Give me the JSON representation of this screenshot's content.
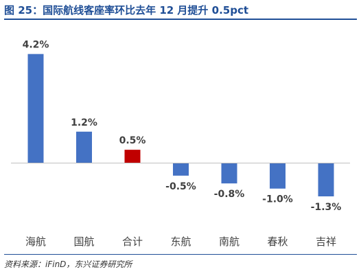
{
  "header": {
    "title": "图 25：国际航线客座率环比去年 12 月提升 0.5pct"
  },
  "footer": {
    "source": "资料来源：iFinD，东兴证券研究所"
  },
  "colors": {
    "title": "#1f4e96",
    "bar_default": "#4472c4",
    "bar_highlight": "#c00000",
    "axis": "#bfbfbf",
    "label": "#404040"
  },
  "chart_data": {
    "type": "bar",
    "categories": [
      "海航",
      "国航",
      "合计",
      "东航",
      "南航",
      "春秋",
      "吉祥"
    ],
    "values": [
      4.2,
      1.2,
      0.5,
      -0.5,
      -0.8,
      -1.0,
      -1.3
    ],
    "value_labels": [
      "4.2%",
      "1.2%",
      "0.5%",
      "-0.5%",
      "-0.8%",
      "-1.0%",
      "-1.3%"
    ],
    "highlight_category": "合计",
    "title": "",
    "xlabel": "",
    "ylabel": "",
    "grid": false
  }
}
